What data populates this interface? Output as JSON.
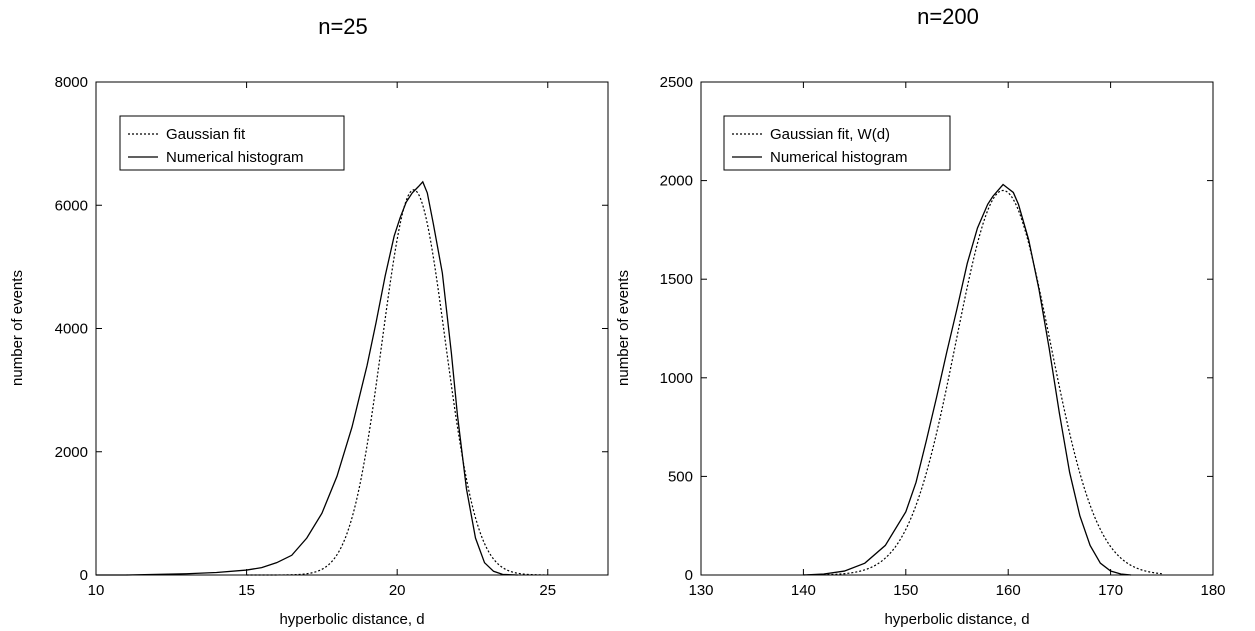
{
  "chart_data": [
    {
      "type": "line",
      "title": "n=25",
      "xlabel": "hyperbolic distance, d",
      "ylabel": "number of events",
      "xlim": [
        10,
        27
      ],
      "ylim": [
        0,
        8000
      ],
      "xticks": [
        10,
        15,
        20,
        25
      ],
      "yticks": [
        0,
        2000,
        4000,
        6000,
        8000
      ],
      "grid": false,
      "legend_position": "top-left",
      "series": [
        {
          "name": "Gaussian fit",
          "style": "dotted",
          "kind": "gaussian",
          "amplitude": 6250,
          "mean": 20.55,
          "sigma": 1.05,
          "x_range": [
            15,
            25
          ]
        },
        {
          "name": "Numerical histogram",
          "style": "solid",
          "x": [
            10,
            11,
            12,
            13,
            14,
            15,
            15.5,
            16,
            16.5,
            17,
            17.5,
            18,
            18.5,
            19,
            19.3,
            19.6,
            19.9,
            20.1,
            20.3,
            20.5,
            20.7,
            20.85,
            21,
            21.2,
            21.5,
            21.8,
            22,
            22.3,
            22.6,
            22.9,
            23.2,
            23.5,
            24
          ],
          "y": [
            0,
            0,
            10,
            20,
            40,
            80,
            120,
            200,
            320,
            600,
            1000,
            1600,
            2400,
            3400,
            4100,
            4850,
            5500,
            5800,
            6050,
            6200,
            6300,
            6380,
            6200,
            5700,
            4900,
            3600,
            2600,
            1400,
            600,
            200,
            60,
            10,
            0
          ]
        }
      ]
    },
    {
      "type": "line",
      "title": "n=200",
      "xlabel": "hyperbolic distance, d",
      "ylabel": "number of events",
      "xlim": [
        130,
        180
      ],
      "ylim": [
        0,
        2500
      ],
      "xticks": [
        130,
        140,
        150,
        160,
        170,
        180
      ],
      "yticks": [
        0,
        500,
        1000,
        1500,
        2000,
        2500
      ],
      "grid": false,
      "legend_position": "top-left",
      "series": [
        {
          "name": "Gaussian fit, W(d)",
          "style": "dotted",
          "kind": "gaussian",
          "amplitude": 1950,
          "mean": 159.5,
          "sigma": 4.6,
          "x_range": [
            140,
            175
          ]
        },
        {
          "name": "Numerical histogram",
          "style": "solid",
          "x": [
            140,
            142,
            144,
            146,
            148,
            150,
            151,
            152,
            153,
            154,
            155,
            156,
            157,
            158,
            158.5,
            159,
            159.5,
            160,
            160.5,
            161,
            162,
            163,
            164,
            165,
            166,
            167,
            168,
            169,
            170,
            171,
            172
          ],
          "y": [
            0,
            5,
            20,
            60,
            150,
            320,
            470,
            680,
            900,
            1130,
            1350,
            1580,
            1760,
            1880,
            1920,
            1950,
            1980,
            1960,
            1940,
            1880,
            1700,
            1450,
            1150,
            820,
            520,
            300,
            150,
            60,
            20,
            5,
            0
          ]
        }
      ]
    }
  ]
}
